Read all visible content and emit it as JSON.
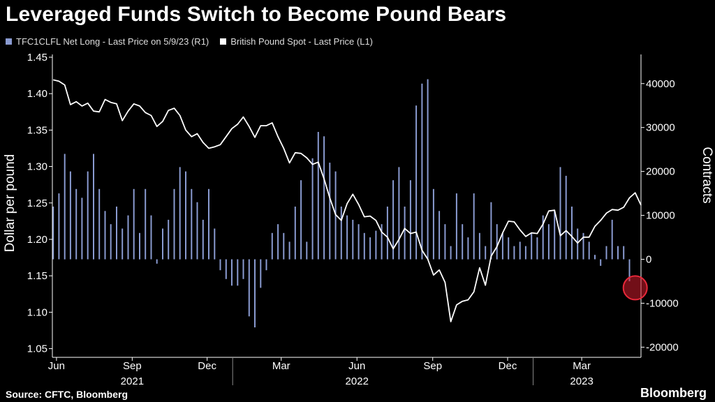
{
  "title": "Leveraged Funds Switch to Become Pound Bears",
  "legend": [
    {
      "label": "TFC1CLFL Net Long - Last Price on 5/9/23 (R1)",
      "color": "#8a9bd1"
    },
    {
      "label": "British Pound Spot - Last Price (L1)",
      "color": "#ffffff"
    }
  ],
  "footer": {
    "source": "Source: CFTC, Bloomberg",
    "brand": "Bloomberg"
  },
  "colors": {
    "bars": "#8a9bd1",
    "line": "#ffffff",
    "highlight": "#d01c2c",
    "axis": "#ffffff"
  },
  "chart_data": {
    "type": "bar+line",
    "y_left": {
      "label": "Dollar per pound",
      "lim": [
        1.04,
        1.45
      ],
      "ticks": [
        "1.05",
        "1.10",
        "1.15",
        "1.20",
        "1.25",
        "1.30",
        "1.35",
        "1.40",
        "1.45"
      ]
    },
    "y_right": {
      "label": "Contracts",
      "lim": [
        -22000,
        46000
      ],
      "ticks": [
        "-20000",
        "-10000",
        "0",
        "10000",
        "20000",
        "30000",
        "40000"
      ]
    },
    "x_lim": [
      "2021-05-27",
      "2023-05-12"
    ],
    "month_ticks": [
      "Jun",
      "Sep",
      "Dec",
      "Mar",
      "Jun",
      "Sep",
      "Dec",
      "Mar"
    ],
    "month_tick_dates": [
      "2021-06-01",
      "2021-09-01",
      "2021-12-01",
      "2022-03-01",
      "2022-06-01",
      "2022-09-01",
      "2022-12-01",
      "2023-03-01"
    ],
    "year_labels": [
      "2021",
      "2022",
      "2023"
    ],
    "year_label_dates": [
      "2021-09-01",
      "2022-06-01",
      "2023-03-01"
    ],
    "year_separators": [
      "2022-01-01",
      "2023-01-01"
    ],
    "series": [
      {
        "name": "TFC1CLFL Net Long - Last Price on 5/9/23 (R1)",
        "axis": "right",
        "kind": "bar",
        "points": [
          [
            "2021-05-28",
            12000
          ],
          [
            "2021-06-04",
            15000
          ],
          [
            "2021-06-11",
            24000
          ],
          [
            "2021-06-18",
            20000
          ],
          [
            "2021-06-25",
            16000
          ],
          [
            "2021-07-02",
            14000
          ],
          [
            "2021-07-09",
            20000
          ],
          [
            "2021-07-16",
            24000
          ],
          [
            "2021-07-23",
            16000
          ],
          [
            "2021-07-30",
            11000
          ],
          [
            "2021-08-06",
            8000
          ],
          [
            "2021-08-13",
            12000
          ],
          [
            "2021-08-20",
            7000
          ],
          [
            "2021-08-27",
            10000
          ],
          [
            "2021-09-03",
            16000
          ],
          [
            "2021-09-10",
            6000
          ],
          [
            "2021-09-17",
            16000
          ],
          [
            "2021-09-24",
            10000
          ],
          [
            "2021-10-01",
            -1000
          ],
          [
            "2021-10-08",
            7000
          ],
          [
            "2021-10-15",
            9000
          ],
          [
            "2021-10-22",
            16000
          ],
          [
            "2021-10-29",
            21000
          ],
          [
            "2021-11-05",
            20000
          ],
          [
            "2021-11-12",
            16000
          ],
          [
            "2021-11-19",
            13000
          ],
          [
            "2021-11-26",
            9000
          ],
          [
            "2021-12-03",
            16000
          ],
          [
            "2021-12-10",
            7000
          ],
          [
            "2021-12-17",
            -2500
          ],
          [
            "2021-12-24",
            -4500
          ],
          [
            "2021-12-31",
            -6000
          ],
          [
            "2022-01-07",
            -6000
          ],
          [
            "2022-01-14",
            -4500
          ],
          [
            "2022-01-21",
            -13000
          ],
          [
            "2022-01-28",
            -15500
          ],
          [
            "2022-02-04",
            -6500
          ],
          [
            "2022-02-11",
            -2500
          ],
          [
            "2022-02-18",
            6000
          ],
          [
            "2022-02-25",
            8000
          ],
          [
            "2022-03-04",
            6000
          ],
          [
            "2022-03-11",
            4000
          ],
          [
            "2022-03-18",
            12000
          ],
          [
            "2022-03-25",
            18000
          ],
          [
            "2022-04-01",
            4000
          ],
          [
            "2022-04-08",
            23000
          ],
          [
            "2022-04-15",
            29000
          ],
          [
            "2022-04-22",
            28000
          ],
          [
            "2022-04-29",
            22000
          ],
          [
            "2022-05-06",
            20000
          ],
          [
            "2022-05-13",
            12000
          ],
          [
            "2022-05-20",
            10000
          ],
          [
            "2022-05-27",
            9000
          ],
          [
            "2022-06-03",
            8000
          ],
          [
            "2022-06-10",
            6000
          ],
          [
            "2022-06-17",
            5000
          ],
          [
            "2022-06-24",
            6500
          ],
          [
            "2022-07-01",
            8000
          ],
          [
            "2022-07-08",
            12000
          ],
          [
            "2022-07-15",
            18000
          ],
          [
            "2022-07-22",
            21000
          ],
          [
            "2022-07-29",
            12000
          ],
          [
            "2022-08-05",
            18000
          ],
          [
            "2022-08-12",
            35000
          ],
          [
            "2022-08-19",
            40000
          ],
          [
            "2022-08-26",
            41000
          ],
          [
            "2022-09-02",
            16000
          ],
          [
            "2022-09-09",
            11000
          ],
          [
            "2022-09-16",
            8000
          ],
          [
            "2022-09-23",
            3000
          ],
          [
            "2022-09-30",
            15000
          ],
          [
            "2022-10-07",
            8000
          ],
          [
            "2022-10-14",
            5000
          ],
          [
            "2022-10-21",
            15000
          ],
          [
            "2022-10-28",
            6000
          ],
          [
            "2022-11-04",
            3000
          ],
          [
            "2022-11-11",
            13000
          ],
          [
            "2022-11-18",
            8000
          ],
          [
            "2022-11-25",
            6000
          ],
          [
            "2022-12-02",
            5000
          ],
          [
            "2022-12-09",
            3000
          ],
          [
            "2022-12-16",
            4000
          ],
          [
            "2022-12-23",
            3000
          ],
          [
            "2022-12-30",
            6000
          ],
          [
            "2023-01-06",
            5000
          ],
          [
            "2023-01-13",
            10000
          ],
          [
            "2023-01-20",
            8000
          ],
          [
            "2023-01-27",
            11000
          ],
          [
            "2023-02-03",
            21000
          ],
          [
            "2023-02-10",
            19000
          ],
          [
            "2023-02-17",
            12000
          ],
          [
            "2023-02-24",
            7000
          ],
          [
            "2023-03-03",
            6000
          ],
          [
            "2023-03-10",
            4000
          ],
          [
            "2023-03-17",
            1000
          ],
          [
            "2023-03-24",
            -1500
          ],
          [
            "2023-03-31",
            3000
          ],
          [
            "2023-04-07",
            9000
          ],
          [
            "2023-04-14",
            3000
          ],
          [
            "2023-04-21",
            3000
          ],
          [
            "2023-04-28",
            -5000
          ]
        ]
      },
      {
        "name": "British Pound Spot - Last Price (L1)",
        "axis": "left",
        "kind": "line",
        "points": [
          [
            "2021-05-28",
            1.419
          ],
          [
            "2021-06-04",
            1.417
          ],
          [
            "2021-06-11",
            1.412
          ],
          [
            "2021-06-18",
            1.385
          ],
          [
            "2021-06-25",
            1.389
          ],
          [
            "2021-07-02",
            1.383
          ],
          [
            "2021-07-09",
            1.387
          ],
          [
            "2021-07-16",
            1.376
          ],
          [
            "2021-07-23",
            1.375
          ],
          [
            "2021-07-30",
            1.392
          ],
          [
            "2021-08-06",
            1.388
          ],
          [
            "2021-08-13",
            1.386
          ],
          [
            "2021-08-20",
            1.363
          ],
          [
            "2021-08-27",
            1.376
          ],
          [
            "2021-09-03",
            1.386
          ],
          [
            "2021-09-10",
            1.383
          ],
          [
            "2021-09-17",
            1.374
          ],
          [
            "2021-09-24",
            1.37
          ],
          [
            "2021-10-01",
            1.355
          ],
          [
            "2021-10-08",
            1.362
          ],
          [
            "2021-10-15",
            1.377
          ],
          [
            "2021-10-22",
            1.38
          ],
          [
            "2021-10-29",
            1.37
          ],
          [
            "2021-11-05",
            1.35
          ],
          [
            "2021-11-12",
            1.341
          ],
          [
            "2021-11-19",
            1.345
          ],
          [
            "2021-11-26",
            1.333
          ],
          [
            "2021-12-03",
            1.325
          ],
          [
            "2021-12-10",
            1.327
          ],
          [
            "2021-12-17",
            1.33
          ],
          [
            "2021-12-24",
            1.341
          ],
          [
            "2021-12-31",
            1.352
          ],
          [
            "2022-01-07",
            1.358
          ],
          [
            "2022-01-14",
            1.368
          ],
          [
            "2022-01-21",
            1.355
          ],
          [
            "2022-01-28",
            1.34
          ],
          [
            "2022-02-04",
            1.356
          ],
          [
            "2022-02-11",
            1.356
          ],
          [
            "2022-02-18",
            1.36
          ],
          [
            "2022-02-25",
            1.341
          ],
          [
            "2022-03-04",
            1.325
          ],
          [
            "2022-03-11",
            1.305
          ],
          [
            "2022-03-18",
            1.319
          ],
          [
            "2022-03-25",
            1.318
          ],
          [
            "2022-04-01",
            1.312
          ],
          [
            "2022-04-08",
            1.303
          ],
          [
            "2022-04-15",
            1.306
          ],
          [
            "2022-04-22",
            1.283
          ],
          [
            "2022-04-29",
            1.257
          ],
          [
            "2022-05-06",
            1.234
          ],
          [
            "2022-05-13",
            1.226
          ],
          [
            "2022-05-20",
            1.249
          ],
          [
            "2022-05-27",
            1.262
          ],
          [
            "2022-06-03",
            1.248
          ],
          [
            "2022-06-10",
            1.231
          ],
          [
            "2022-06-17",
            1.232
          ],
          [
            "2022-06-24",
            1.226
          ],
          [
            "2022-07-01",
            1.21
          ],
          [
            "2022-07-08",
            1.203
          ],
          [
            "2022-07-15",
            1.187
          ],
          [
            "2022-07-22",
            1.2
          ],
          [
            "2022-07-29",
            1.215
          ],
          [
            "2022-08-05",
            1.208
          ],
          [
            "2022-08-12",
            1.21
          ],
          [
            "2022-08-19",
            1.185
          ],
          [
            "2022-08-26",
            1.173
          ],
          [
            "2022-09-02",
            1.151
          ],
          [
            "2022-09-09",
            1.158
          ],
          [
            "2022-09-16",
            1.141
          ],
          [
            "2022-09-23",
            1.087
          ],
          [
            "2022-09-30",
            1.11
          ],
          [
            "2022-10-07",
            1.115
          ],
          [
            "2022-10-14",
            1.117
          ],
          [
            "2022-10-21",
            1.128
          ],
          [
            "2022-10-28",
            1.161
          ],
          [
            "2022-11-04",
            1.137
          ],
          [
            "2022-11-11",
            1.177
          ],
          [
            "2022-11-18",
            1.19
          ],
          [
            "2022-11-25",
            1.209
          ],
          [
            "2022-12-02",
            1.225
          ],
          [
            "2022-12-09",
            1.224
          ],
          [
            "2022-12-16",
            1.213
          ],
          [
            "2022-12-23",
            1.204
          ],
          [
            "2022-12-30",
            1.209
          ],
          [
            "2023-01-06",
            1.208
          ],
          [
            "2023-01-13",
            1.221
          ],
          [
            "2023-01-20",
            1.239
          ],
          [
            "2023-01-27",
            1.24
          ],
          [
            "2023-02-03",
            1.205
          ],
          [
            "2023-02-10",
            1.212
          ],
          [
            "2023-02-17",
            1.204
          ],
          [
            "2023-02-24",
            1.195
          ],
          [
            "2023-03-03",
            1.203
          ],
          [
            "2023-03-10",
            1.203
          ],
          [
            "2023-03-17",
            1.218
          ],
          [
            "2023-03-24",
            1.226
          ],
          [
            "2023-03-31",
            1.236
          ],
          [
            "2023-04-07",
            1.241
          ],
          [
            "2023-04-14",
            1.24
          ],
          [
            "2023-04-21",
            1.244
          ],
          [
            "2023-04-28",
            1.257
          ],
          [
            "2023-05-05",
            1.264
          ],
          [
            "2023-05-12",
            1.247
          ]
        ]
      }
    ],
    "highlight": {
      "date": "2023-05-05",
      "value": -6500,
      "axis": "right"
    },
    "grid": false,
    "legend_position": "top-left"
  }
}
